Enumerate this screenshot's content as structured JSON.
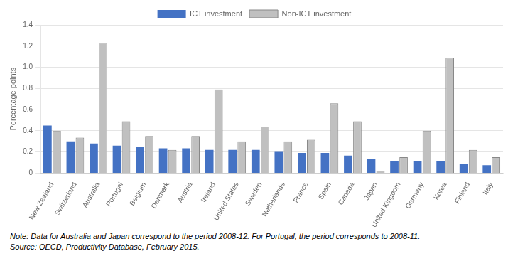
{
  "chart_data": {
    "type": "bar",
    "categories": [
      "New Zealand",
      "Switzerland",
      "Australia",
      "Portugal",
      "Belgium",
      "Denmark",
      "Austria",
      "Ireland",
      "United States",
      "Sweden",
      "Netherlands",
      "France",
      "Spain",
      "Canada",
      "Japan",
      "United Kingdom",
      "Germany",
      "Korea",
      "Finland",
      "Italy"
    ],
    "series": [
      {
        "name": "ICT investment",
        "color": "#4472c4",
        "values": [
          0.45,
          0.3,
          0.28,
          0.26,
          0.245,
          0.235,
          0.235,
          0.22,
          0.22,
          0.22,
          0.2,
          0.19,
          0.19,
          0.165,
          0.13,
          0.11,
          0.11,
          0.11,
          0.09,
          0.075
        ]
      },
      {
        "name": "Non-ICT investment",
        "color": "#c0c0c0",
        "values": [
          0.4,
          0.335,
          1.23,
          0.49,
          0.35,
          0.22,
          0.35,
          0.79,
          0.3,
          0.44,
          0.3,
          0.315,
          0.66,
          0.49,
          0.02,
          0.15,
          0.4,
          1.09,
          0.22,
          0.15
        ]
      }
    ],
    "ylabel": "Percentage points",
    "ylim": [
      0,
      1.4
    ],
    "yticks": [
      0,
      0.2,
      0.4,
      0.6,
      0.8,
      {
        "value": 1.0,
        "label": "1.0"
      },
      1.2,
      1.4
    ],
    "grid": true,
    "legend": "top",
    "annotations": [
      "Note: Data for Australia and Japan correspond to the period 2008-12. For Portugal, the period corresponds to 2008-11.",
      "Source: OECD, Productivity Database, February 2015."
    ]
  }
}
